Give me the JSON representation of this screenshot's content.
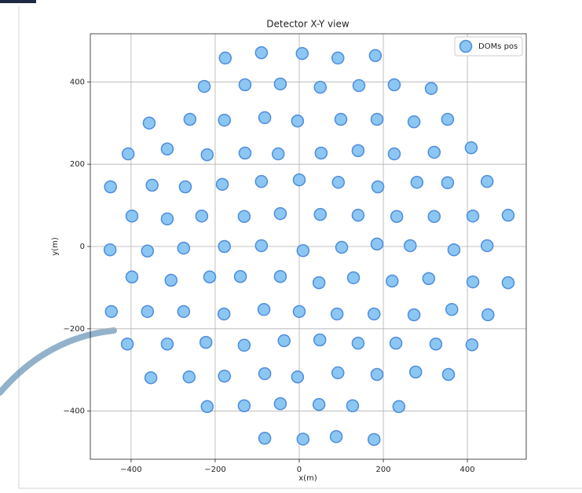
{
  "chart_data": {
    "type": "scatter",
    "title": "Detector X-Y view",
    "xlabel": "x(m)",
    "ylabel": "y(m)",
    "xlim": [
      -497,
      540
    ],
    "ylim": [
      -517,
      517
    ],
    "xticks": [
      {
        "value": -400,
        "label": "−400"
      },
      {
        "value": -200,
        "label": "−200"
      },
      0,
      200,
      400
    ],
    "yticks": [
      {
        "value": -400,
        "label": "−400"
      },
      {
        "value": -200,
        "label": "−200"
      },
      0,
      200,
      400
    ],
    "grid": true,
    "legend": "upper right",
    "x": [
      -176,
      -90,
      7,
      92,
      181,
      -226,
      -129,
      -45,
      50,
      142,
      226,
      314,
      -357,
      -260,
      -178,
      -82,
      -4,
      99,
      185,
      273,
      353,
      -407,
      -314,
      -219,
      -129,
      -50,
      52,
      140,
      226,
      321,
      409,
      -449,
      -350,
      -271,
      -183,
      -90,
      0,
      93,
      187,
      280,
      353,
      447,
      -398,
      -314,
      -232,
      -131,
      -45,
      50,
      140,
      232,
      321,
      413,
      497,
      -450,
      -361,
      -275,
      -178,
      -90,
      9,
      101,
      185,
      264,
      368,
      447,
      -398,
      -305,
      -213,
      -140,
      -45,
      47,
      129,
      221,
      308,
      413,
      497,
      -447,
      -361,
      -275,
      -179,
      -84,
      0,
      90,
      178,
      273,
      363,
      449,
      -409,
      -314,
      -222,
      -131,
      -36,
      49,
      140,
      230,
      325,
      411,
      -353,
      -262,
      -178,
      -82,
      -4,
      92,
      185,
      277,
      355,
      -219,
      -131,
      -45,
      47,
      127,
      237,
      -82,
      9,
      88,
      178
    ],
    "series": [
      {
        "name": "DOMs pos",
        "color": "#8cc6f2",
        "edgecolor": "#4d8ddc",
        "values": [
          458,
          471,
          469,
          458,
          464,
          389,
          393,
          395,
          387,
          391,
          393,
          384,
          300,
          309,
          307,
          313,
          305,
          309,
          309,
          303,
          309,
          225,
          237,
          223,
          227,
          225,
          227,
          233,
          225,
          229,
          240,
          145,
          149,
          145,
          151,
          158,
          162,
          156,
          145,
          156,
          155,
          158,
          74,
          67,
          74,
          73,
          80,
          78,
          76,
          73,
          73,
          74,
          76,
          -8,
          -11,
          -4,
          0,
          2,
          -10,
          -2,
          6,
          2,
          -8,
          2,
          -74,
          -82,
          -74,
          -73,
          -73,
          -88,
          -76,
          -84,
          -78,
          -86,
          -88,
          -158,
          -158,
          -158,
          -164,
          -153,
          -158,
          -164,
          -164,
          -166,
          -153,
          -166,
          -237,
          -237,
          -233,
          -240,
          -229,
          -227,
          -235,
          -235,
          -237,
          -239,
          -319,
          -317,
          -315,
          -309,
          -317,
          -307,
          -311,
          -305,
          -311,
          -389,
          -387,
          -382,
          -384,
          -387,
          -389,
          -466,
          -468,
          -462,
          -469
        ]
      }
    ]
  }
}
